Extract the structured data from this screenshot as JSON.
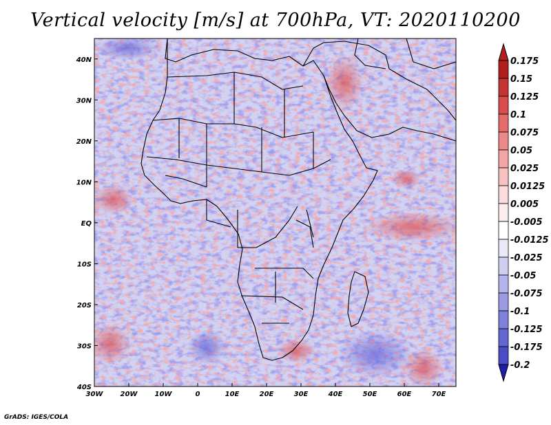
{
  "title": "Vertical velocity [m/s] at 700hPa, VT: 2020110200",
  "credit": "GrADS: IGES/COLA",
  "map": {
    "variable": "vertical velocity",
    "units": "m/s",
    "level": "700hPa",
    "valid_time": "2020110200",
    "region": "Africa",
    "lon_range": [
      -30,
      75
    ],
    "lat_range": [
      -40,
      45
    ],
    "lon_ticks": [
      {
        "value": -30,
        "label": "30W"
      },
      {
        "value": -20,
        "label": "20W"
      },
      {
        "value": -10,
        "label": "10W"
      },
      {
        "value": 0,
        "label": "0"
      },
      {
        "value": 10,
        "label": "10E"
      },
      {
        "value": 20,
        "label": "20E"
      },
      {
        "value": 30,
        "label": "30E"
      },
      {
        "value": 40,
        "label": "40E"
      },
      {
        "value": 50,
        "label": "50E"
      },
      {
        "value": 60,
        "label": "60E"
      },
      {
        "value": 70,
        "label": "70E"
      }
    ],
    "lat_ticks": [
      {
        "value": 40,
        "label": "40N"
      },
      {
        "value": 30,
        "label": "30N"
      },
      {
        "value": 20,
        "label": "20N"
      },
      {
        "value": 10,
        "label": "10N"
      },
      {
        "value": 0,
        "label": "EQ"
      },
      {
        "value": -10,
        "label": "10S"
      },
      {
        "value": -20,
        "label": "20S"
      },
      {
        "value": -30,
        "label": "30S"
      },
      {
        "value": -40,
        "label": "40S"
      }
    ]
  },
  "colorbar": {
    "levels": [
      {
        "label": "0.175",
        "color": "#b01e1e"
      },
      {
        "label": "0.15",
        "color": "#c53434"
      },
      {
        "label": "0.125",
        "color": "#d94d4d"
      },
      {
        "label": "0.1",
        "color": "#e56a6a"
      },
      {
        "label": "0.075",
        "color": "#ee8787"
      },
      {
        "label": "0.05",
        "color": "#f4a5a5"
      },
      {
        "label": "0.025",
        "color": "#f8c2c2"
      },
      {
        "label": "0.0125",
        "color": "#fbdcdc"
      },
      {
        "label": "0.005",
        "color": "#fdeeee"
      },
      {
        "label": "-0.005",
        "color": "#ffffff"
      },
      {
        "label": "-0.0125",
        "color": "#e9e9f8"
      },
      {
        "label": "-0.025",
        "color": "#cfcff2"
      },
      {
        "label": "-0.05",
        "color": "#b4b4ec"
      },
      {
        "label": "-0.075",
        "color": "#9a9ae5"
      },
      {
        "label": "-0.1",
        "color": "#7f7fdd"
      },
      {
        "label": "-0.125",
        "color": "#6565d4"
      },
      {
        "label": "-0.175",
        "color": "#4b4bc8"
      },
      {
        "label": "-0.2",
        "color": "#3030b8"
      }
    ],
    "top_triangle_color": "#b01e1e",
    "bottom_triangle_color": "#1e1ea6"
  },
  "colors": {
    "positive": "#d83c3c",
    "negative": "#4a4ad0",
    "background_field": "#c8c8f0",
    "coastline": "#000000"
  }
}
